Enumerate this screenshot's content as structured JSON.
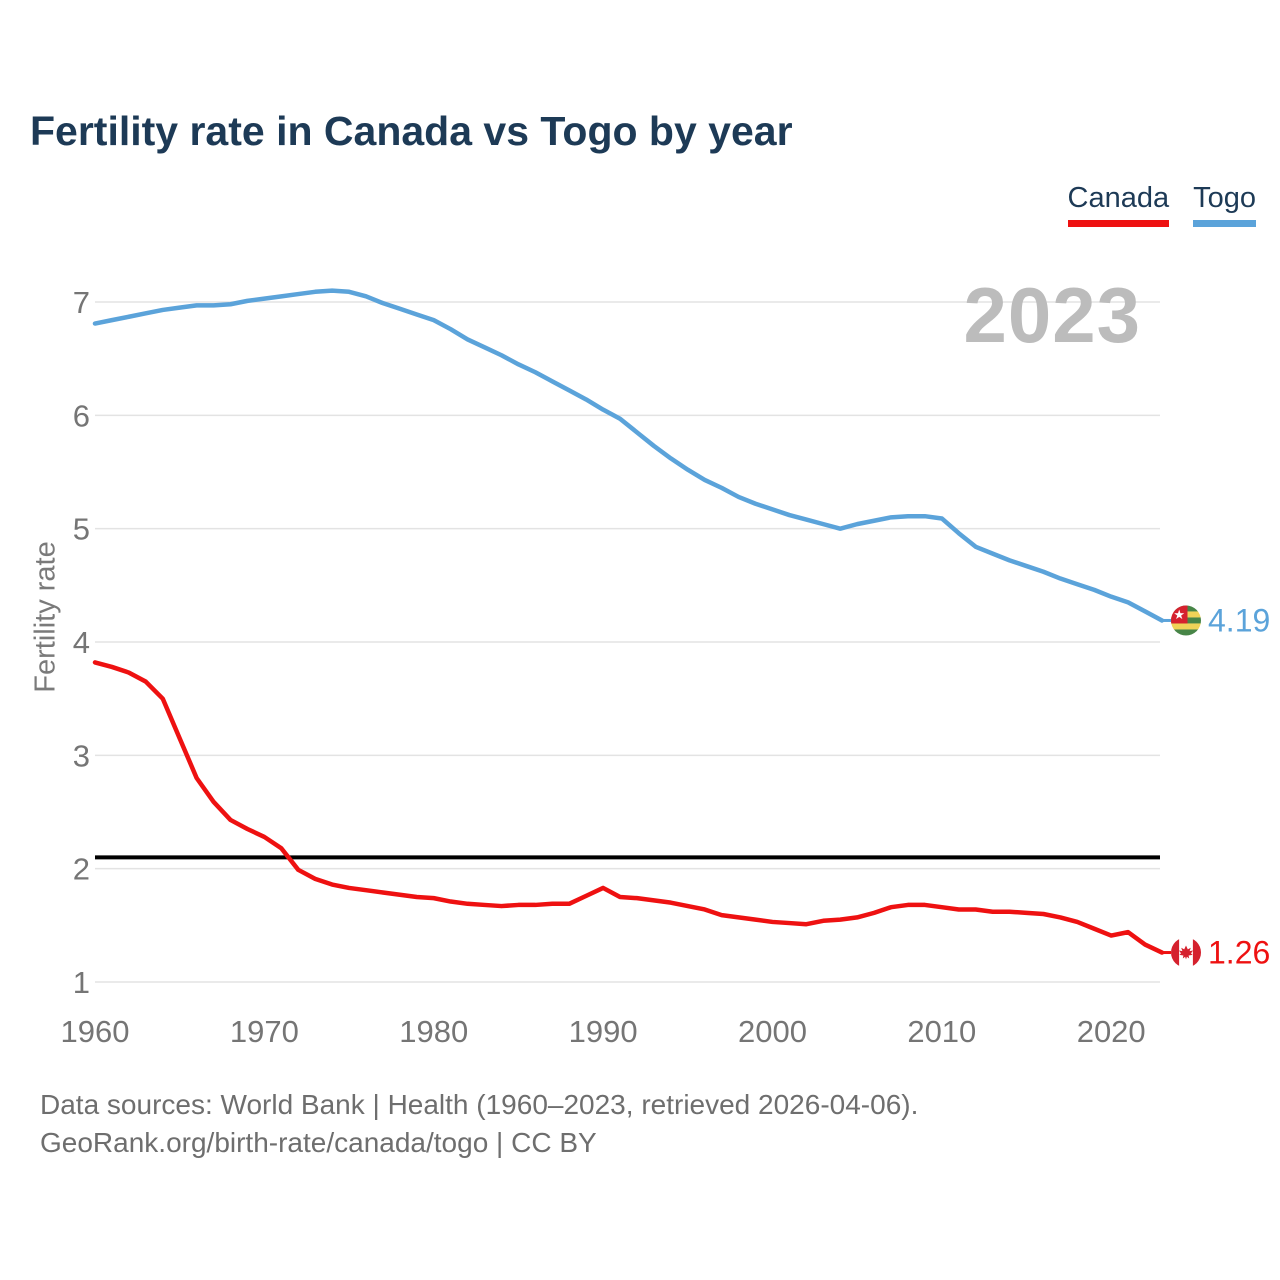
{
  "title": "Fertility rate in Canada vs Togo by year",
  "watermark": "2023",
  "legend": {
    "items": [
      {
        "label": "Canada",
        "color": "#ee1111"
      },
      {
        "label": "Togo",
        "color": "#5ba3da"
      }
    ]
  },
  "chart_data": {
    "type": "line",
    "title": "Fertility rate in Canada vs Togo by year",
    "xlabel": "",
    "ylabel": "Fertility rate",
    "ylim": [
      1,
      7.2
    ],
    "xlim": [
      1960,
      2023
    ],
    "grid": true,
    "legend_position": "top-right",
    "yticks": [
      1,
      2,
      3,
      4,
      5,
      6,
      7
    ],
    "xticks": [
      1960,
      1970,
      1980,
      1990,
      2000,
      2010,
      2020
    ],
    "reference_line": {
      "value": 2.1,
      "color": "#000000"
    },
    "years": [
      1960,
      1961,
      1962,
      1963,
      1964,
      1965,
      1966,
      1967,
      1968,
      1969,
      1970,
      1971,
      1972,
      1973,
      1974,
      1975,
      1976,
      1977,
      1978,
      1979,
      1980,
      1981,
      1982,
      1983,
      1984,
      1985,
      1986,
      1987,
      1988,
      1989,
      1990,
      1991,
      1992,
      1993,
      1994,
      1995,
      1996,
      1997,
      1998,
      1999,
      2000,
      2001,
      2002,
      2003,
      2004,
      2005,
      2006,
      2007,
      2008,
      2009,
      2010,
      2011,
      2012,
      2013,
      2014,
      2015,
      2016,
      2017,
      2018,
      2019,
      2020,
      2021,
      2022,
      2023
    ],
    "series": [
      {
        "name": "Canada",
        "color": "#ee1111",
        "end_label": "1.26",
        "flag_icon": "canada-flag-icon",
        "values": [
          3.82,
          3.78,
          3.73,
          3.65,
          3.5,
          3.15,
          2.8,
          2.59,
          2.43,
          2.35,
          2.28,
          2.18,
          1.99,
          1.91,
          1.86,
          1.83,
          1.81,
          1.79,
          1.77,
          1.75,
          1.74,
          1.71,
          1.69,
          1.68,
          1.67,
          1.68,
          1.68,
          1.69,
          1.69,
          1.76,
          1.83,
          1.75,
          1.74,
          1.72,
          1.7,
          1.67,
          1.64,
          1.59,
          1.57,
          1.55,
          1.53,
          1.52,
          1.51,
          1.54,
          1.55,
          1.57,
          1.61,
          1.66,
          1.68,
          1.68,
          1.66,
          1.64,
          1.64,
          1.62,
          1.62,
          1.61,
          1.6,
          1.57,
          1.53,
          1.47,
          1.41,
          1.44,
          1.33,
          1.26
        ]
      },
      {
        "name": "Togo",
        "color": "#5ba3da",
        "end_label": "4.19",
        "flag_icon": "togo-flag-icon",
        "values": [
          6.81,
          6.84,
          6.87,
          6.9,
          6.93,
          6.95,
          6.97,
          6.97,
          6.98,
          7.01,
          7.03,
          7.05,
          7.07,
          7.09,
          7.1,
          7.09,
          7.05,
          6.99,
          6.94,
          6.89,
          6.84,
          6.76,
          6.67,
          6.6,
          6.53,
          6.45,
          6.38,
          6.3,
          6.22,
          6.14,
          6.05,
          5.97,
          5.85,
          5.73,
          5.62,
          5.52,
          5.43,
          5.36,
          5.28,
          5.22,
          5.17,
          5.12,
          5.08,
          5.04,
          5.0,
          5.04,
          5.07,
          5.1,
          5.11,
          5.11,
          5.09,
          4.96,
          4.84,
          4.78,
          4.72,
          4.67,
          4.62,
          4.56,
          4.51,
          4.46,
          4.4,
          4.35,
          4.27,
          4.19
        ]
      }
    ]
  },
  "footer": {
    "line1": "Data sources: World Bank | Health (1960–2023, retrieved 2026-04-06).",
    "line2": "GeoRank.org/birth-rate/canada/togo | CC BY"
  }
}
